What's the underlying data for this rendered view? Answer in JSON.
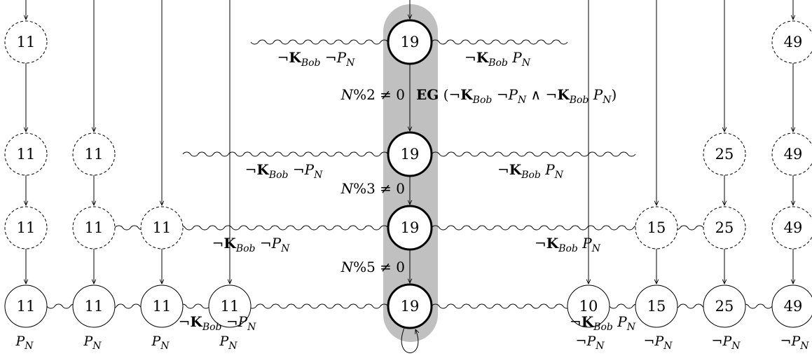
{
  "symbols": {
    "not": "¬",
    "knows": "K",
    "agent": "Bob",
    "prop": "P",
    "prop_sub": "N",
    "and": "∧",
    "eg": "EG"
  },
  "columns": [
    {
      "id": "c1",
      "levels": [
        {
          "value": "11",
          "style": "dashed"
        },
        {
          "value": "11",
          "style": "dashed"
        },
        {
          "value": "11",
          "style": "dashed"
        },
        {
          "value": "11",
          "style": "solid",
          "prop": "P_N"
        }
      ]
    },
    {
      "id": "c2",
      "levels": [
        {
          "value": "11",
          "style": "dashed"
        },
        {
          "value": "11",
          "style": "dashed"
        },
        {
          "value": "11",
          "style": "solid",
          "prop": "P_N"
        }
      ]
    },
    {
      "id": "c3",
      "levels": [
        {
          "value": "11",
          "style": "dashed"
        },
        {
          "value": "11",
          "style": "solid",
          "prop": "P_N"
        }
      ]
    },
    {
      "id": "c4",
      "levels": [
        {
          "value": "11",
          "style": "solid",
          "prop": "P_N"
        }
      ]
    },
    {
      "id": "center",
      "levels": [
        {
          "value": "19",
          "style": "bold"
        },
        {
          "value": "19",
          "style": "bold"
        },
        {
          "value": "19",
          "style": "bold"
        },
        {
          "value": "19",
          "style": "bold"
        }
      ]
    },
    {
      "id": "c6",
      "levels": [
        {
          "value": "10",
          "style": "solid",
          "prop": "¬P_N"
        }
      ]
    },
    {
      "id": "c7",
      "levels": [
        {
          "value": "15",
          "style": "dashed"
        },
        {
          "value": "15",
          "style": "solid",
          "prop": "¬P_N"
        }
      ]
    },
    {
      "id": "c8",
      "levels": [
        {
          "value": "25",
          "style": "dashed"
        },
        {
          "value": "25",
          "style": "dashed"
        },
        {
          "value": "25",
          "style": "solid",
          "prop": "¬P_N"
        }
      ]
    },
    {
      "id": "c9",
      "levels": [
        {
          "value": "49",
          "style": "dashed"
        },
        {
          "value": "49",
          "style": "dashed"
        },
        {
          "value": "49",
          "style": "dashed"
        },
        {
          "value": "49",
          "style": "solid",
          "prop": "¬P_N"
        }
      ]
    }
  ],
  "center_conditions": [
    "N%2 ≠ 0",
    "N%3 ≠ 0",
    "N%5 ≠ 0"
  ],
  "eg_formula": "EG (¬K_Bob ¬P_N ∧ ¬K_Bob P_N)",
  "wavy_edges": [
    {
      "level": 1,
      "left_label": "¬K_Bob ¬P_N",
      "right_label": "¬K_Bob P_N"
    },
    {
      "level": 2,
      "left_label": "¬K_Bob ¬P_N",
      "right_label": "¬K_Bob P_N"
    },
    {
      "level": 3,
      "left_label": "¬K_Bob ¬P_N",
      "right_label": "¬K_Bob P_N"
    },
    {
      "level": 4,
      "left_label": "¬K_Bob ¬P_N",
      "right_label": "¬K_Bob P_N"
    }
  ],
  "highlight_color": "#c0c0c0"
}
